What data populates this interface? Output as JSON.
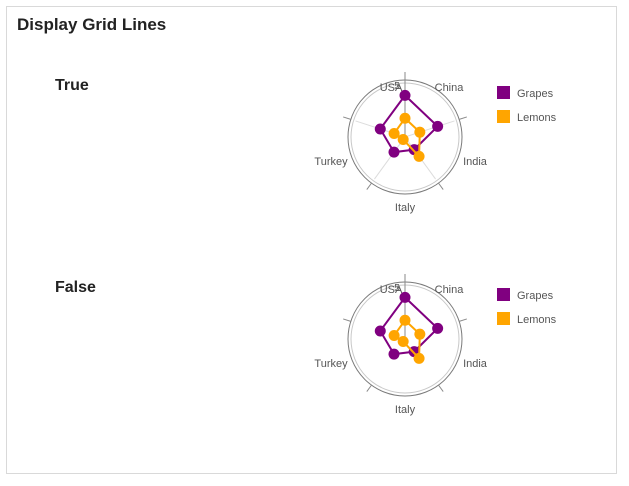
{
  "page": {
    "title": "Display Grid Lines"
  },
  "sections": [
    {
      "label": "True"
    },
    {
      "label": "False"
    }
  ],
  "chart_data": [
    {
      "type": "radar",
      "show_grid_lines": true,
      "categories": [
        "USA",
        "China",
        "India",
        "Italy",
        "Turkey"
      ],
      "series": [
        {
          "name": "Grapes",
          "color": "#800080",
          "values": [
            4.0,
            3.3,
            1.5,
            1.8,
            2.5
          ]
        },
        {
          "name": "Lemons",
          "color": "#FFA500",
          "values": [
            1.8,
            1.5,
            2.3,
            0.3,
            1.1
          ]
        }
      ],
      "rmax": 5,
      "tick_labels": [
        "5"
      ],
      "legend": "right"
    },
    {
      "type": "radar",
      "show_grid_lines": false,
      "categories": [
        "USA",
        "China",
        "India",
        "Italy",
        "Turkey"
      ],
      "series": [
        {
          "name": "Grapes",
          "color": "#800080",
          "values": [
            4.0,
            3.3,
            1.5,
            1.8,
            2.5
          ]
        },
        {
          "name": "Lemons",
          "color": "#FFA500",
          "values": [
            1.8,
            1.5,
            2.3,
            0.3,
            1.1
          ]
        }
      ],
      "rmax": 5,
      "tick_labels": [
        "5"
      ],
      "legend": "right"
    }
  ]
}
